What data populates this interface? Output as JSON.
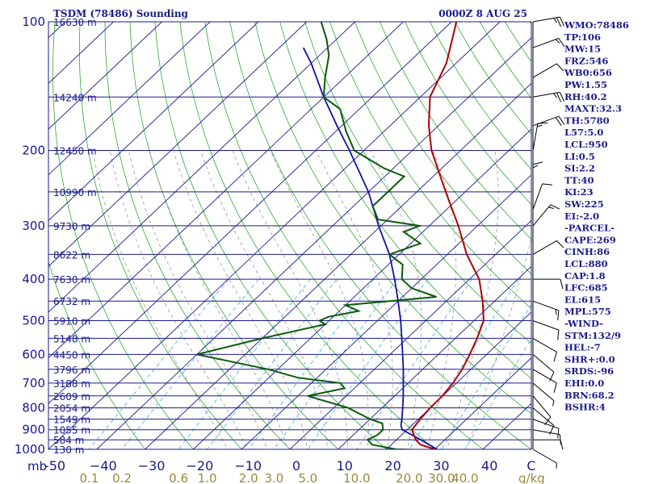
{
  "header": {
    "title": "TSDM (78486) Sounding",
    "datetime": "0000Z  8 AUG 25"
  },
  "chart_data": {
    "type": "skew-t",
    "pressure_unit": "mb",
    "mixing_ratio_unit": "g/kg",
    "pressure_ticks": [
      100,
      200,
      300,
      400,
      500,
      600,
      700,
      800,
      900,
      1000
    ],
    "temperature_ticks": [
      -50,
      -40,
      -30,
      -20,
      -10,
      0,
      10,
      20,
      30,
      40
    ],
    "temperature_tick_labels": [
      "-50",
      "−40",
      "−30",
      "−20",
      "−10",
      "0",
      "10",
      "20",
      "30",
      "40"
    ],
    "mixing_ratio_labels": [
      {
        "text": "0.1",
        "value": 0.1
      },
      {
        "text": "0.2",
        "value": 0.2
      },
      {
        "text": "0.6",
        "value": 0.6
      },
      {
        "text": "1.0",
        "value": 1.0
      },
      {
        "text": "2.0",
        "value": 2.0
      },
      {
        "text": "3.0",
        "value": 3.0
      },
      {
        "text": "5.0",
        "value": 5.0
      },
      {
        "text": "10.0",
        "value": 10.0
      },
      {
        "text": "20.0",
        "value": 20.0
      },
      {
        "text": "30.0",
        "value": 30.0
      },
      {
        "text": "40.0",
        "value": 40.0
      }
    ],
    "height_labels": [
      {
        "p": 100,
        "text": "16630 m"
      },
      {
        "p": 150,
        "text": "14240 m"
      },
      {
        "p": 200,
        "text": "12450 m"
      },
      {
        "p": 250,
        "text": "10990 m"
      },
      {
        "p": 300,
        "text": "9730 m"
      },
      {
        "p": 350,
        "text": "8622 m"
      },
      {
        "p": 400,
        "text": "7630 m"
      },
      {
        "p": 450,
        "text": "6732 m"
      },
      {
        "p": 500,
        "text": "5910 m"
      },
      {
        "p": 550,
        "text": "5148 m"
      },
      {
        "p": 600,
        "text": "4450 m"
      },
      {
        "p": 650,
        "text": "3796 m"
      },
      {
        "p": 700,
        "text": "3188 m"
      },
      {
        "p": 750,
        "text": "2609 m"
      },
      {
        "p": 800,
        "text": "2054 m"
      },
      {
        "p": 850,
        "text": "1549 m"
      },
      {
        "p": 900,
        "text": "1055 m"
      },
      {
        "p": 950,
        "text": "584 m"
      },
      {
        "p": 1000,
        "text": "130 m"
      }
    ],
    "temperature_profile": [
      [
        1005,
        31.0
      ],
      [
        1000,
        30.0
      ],
      [
        975,
        26.0
      ],
      [
        950,
        24.0
      ],
      [
        925,
        22.5
      ],
      [
        900,
        21.0
      ],
      [
        850,
        20.4
      ],
      [
        800,
        20.0
      ],
      [
        750,
        19.9
      ],
      [
        700,
        19.3
      ],
      [
        650,
        18.2
      ],
      [
        600,
        16.5
      ],
      [
        550,
        14.5
      ],
      [
        500,
        12.0
      ],
      [
        450,
        7.5
      ],
      [
        400,
        2.0
      ],
      [
        350,
        -6.0
      ],
      [
        300,
        -14.0
      ],
      [
        250,
        -24.0
      ],
      [
        200,
        -36.0
      ],
      [
        175,
        -42.0
      ],
      [
        150,
        -48.0
      ],
      [
        125,
        -52.0
      ],
      [
        110,
        -56.0
      ],
      [
        100,
        -59.0
      ]
    ],
    "dewpoint_profile": [
      [
        1005,
        30.5
      ],
      [
        1000,
        22.0
      ],
      [
        975,
        16.0
      ],
      [
        950,
        14.0
      ],
      [
        925,
        15.0
      ],
      [
        900,
        15.0
      ],
      [
        870,
        13.5
      ],
      [
        850,
        10.0
      ],
      [
        800,
        3.0
      ],
      [
        750,
        -8.0
      ],
      [
        720,
        -2.0
      ],
      [
        700,
        -4.0
      ],
      [
        680,
        -14.0
      ],
      [
        650,
        -22.0
      ],
      [
        600,
        -40.0
      ],
      [
        550,
        -30.0
      ],
      [
        510,
        -20.0
      ],
      [
        500,
        -22.0
      ],
      [
        490,
        -21.0
      ],
      [
        475,
        -16.0
      ],
      [
        460,
        -20.0
      ],
      [
        440,
        -3.0
      ],
      [
        420,
        -10.0
      ],
      [
        400,
        -14.0
      ],
      [
        370,
        -17.0
      ],
      [
        350,
        -22.0
      ],
      [
        330,
        -18.0
      ],
      [
        310,
        -24.0
      ],
      [
        300,
        -22.0
      ],
      [
        290,
        -32.0
      ],
      [
        270,
        -36.0
      ],
      [
        250,
        -36.0
      ],
      [
        230,
        -36.0
      ],
      [
        220,
        -42.0
      ],
      [
        200,
        -52.0
      ],
      [
        180,
        -58.0
      ],
      [
        160,
        -64.0
      ],
      [
        150,
        -70.0
      ],
      [
        135,
        -74.0
      ],
      [
        120,
        -78.0
      ],
      [
        110,
        -82.0
      ],
      [
        100,
        -87.0
      ]
    ],
    "parcel_profile": [
      [
        1005,
        31.0
      ],
      [
        950,
        25.0
      ],
      [
        900,
        19.0
      ],
      [
        880,
        17.8
      ],
      [
        850,
        16.6
      ],
      [
        800,
        14.3
      ],
      [
        750,
        11.8
      ],
      [
        700,
        9.0
      ],
      [
        650,
        6.0
      ],
      [
        600,
        2.6
      ],
      [
        550,
        -1.1
      ],
      [
        500,
        -5.2
      ],
      [
        450,
        -10.0
      ],
      [
        400,
        -15.5
      ],
      [
        350,
        -22.0
      ],
      [
        300,
        -30.5
      ],
      [
        250,
        -40.0
      ],
      [
        200,
        -53.0
      ],
      [
        175,
        -61.0
      ],
      [
        150,
        -70.0
      ],
      [
        125,
        -80.0
      ],
      [
        115,
        -85.0
      ]
    ],
    "wind_barbs": [
      {
        "p": 100,
        "dir": 80,
        "spd": 25
      },
      {
        "p": 115,
        "dir": 70,
        "spd": 15
      },
      {
        "p": 135,
        "dir": 60,
        "spd": 10
      },
      {
        "p": 150,
        "dir": 80,
        "spd": 25
      },
      {
        "p": 175,
        "dir": 70,
        "spd": 20
      },
      {
        "p": 200,
        "dir": 10,
        "spd": 15
      },
      {
        "p": 250,
        "dir": 360,
        "spd": 15
      },
      {
        "p": 275,
        "dir": 20,
        "spd": 10
      },
      {
        "p": 300,
        "dir": 40,
        "spd": 15
      },
      {
        "p": 350,
        "dir": 60,
        "spd": 10
      },
      {
        "p": 400,
        "dir": 90,
        "spd": 10
      },
      {
        "p": 450,
        "dir": 110,
        "spd": 15
      },
      {
        "p": 500,
        "dir": 110,
        "spd": 10
      },
      {
        "p": 550,
        "dir": 120,
        "spd": 10
      },
      {
        "p": 600,
        "dir": 130,
        "spd": 10
      },
      {
        "p": 650,
        "dir": 120,
        "spd": 10
      },
      {
        "p": 700,
        "dir": 130,
        "spd": 5
      },
      {
        "p": 750,
        "dir": 140,
        "spd": 10
      },
      {
        "p": 800,
        "dir": 130,
        "spd": 10
      },
      {
        "p": 850,
        "dir": 110,
        "spd": 10
      },
      {
        "p": 900,
        "dir": 100,
        "spd": 10
      },
      {
        "p": 950,
        "dir": 90,
        "spd": 10
      },
      {
        "p": 1000,
        "dir": 120,
        "spd": 5
      }
    ]
  },
  "indices": [
    "WMO:78486",
    "TP:106",
    "MW:15",
    "FRZ:546",
    "WB0:656",
    "PW:1.55",
    "RH:40.2",
    "MAXT:32.3",
    "TH:5780",
    "L57:5.0",
    "LCL:950",
    "LI:0.5",
    "SI:2.2",
    "TT:40",
    "KI:23",
    "SW:225",
    "EI:-2.0",
    "-PARCEL-",
    "CAPE:269",
    "CINH:86",
    "LCL:880",
    "CAP:1.8",
    "LFC:685",
    "EL:615",
    "MPL:575",
    "-WIND-",
    "STM:132/9",
    "HEL:-7",
    "SHR+:0.0",
    "SRDS:-96",
    "EHI:0.0",
    "BRN:68.2",
    "BSHR:4"
  ],
  "colors": {
    "frame": "#1a1a8c",
    "isobar": "#1a1a8c",
    "isotherm": "#1a1a8c",
    "dry_adiabat": "#2eaa2e",
    "moist_adiabat": "#8a8a8a",
    "mixing_ratio": "#4fb6e6",
    "temperature": "#b00000",
    "dewpoint": "#0a5a0a",
    "parcel": "#1010a8",
    "mixing_label": "#9a8a3c",
    "text": "#1a1a8c"
  }
}
